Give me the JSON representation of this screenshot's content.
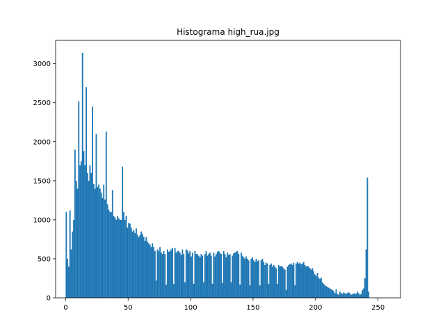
{
  "chart_data": {
    "type": "bar",
    "title": "Histograma high_rua.jpg",
    "xlabel": "",
    "ylabel": "",
    "xlim": [
      -8,
      268
    ],
    "ylim": [
      0,
      3300
    ],
    "xticks": [
      0,
      50,
      100,
      150,
      200,
      250
    ],
    "yticks": [
      0,
      500,
      1000,
      1500,
      2000,
      2500,
      3000
    ],
    "xtick_labels": [
      "0",
      "50",
      "100",
      "150",
      "200",
      "250"
    ],
    "ytick_labels": [
      "0",
      "500",
      "1000",
      "1500",
      "2000",
      "2500",
      "3000"
    ],
    "bar_color": "#1f77b4",
    "grid": false,
    "bin_start": 0,
    "bin_width": 1,
    "values": [
      1100,
      500,
      400,
      1120,
      620,
      850,
      1000,
      1900,
      1500,
      1400,
      2520,
      1700,
      1750,
      3140,
      1880,
      1700,
      2700,
      1600,
      1500,
      1700,
      1600,
      2450,
      1460,
      1400,
      2100,
      1420,
      1450,
      1400,
      1350,
      1280,
      1450,
      1260,
      2130,
      1200,
      1130,
      1100,
      1100,
      1380,
      1050,
      1030,
      1000,
      1050,
      1020,
      1000,
      1000,
      1680,
      1100,
      1000,
      1050,
      900,
      960,
      950,
      900,
      850,
      870,
      830,
      890,
      810,
      780,
      800,
      850,
      820,
      780,
      730,
      780,
      720,
      700,
      680,
      650,
      700,
      650,
      600,
      220,
      620,
      600,
      650,
      580,
      560,
      600,
      560,
      170,
      620,
      590,
      600,
      620,
      640,
      180,
      640,
      580,
      600,
      600,
      580,
      550,
      620,
      560,
      200,
      620,
      610,
      570,
      600,
      530,
      580,
      180,
      600,
      560,
      560,
      540,
      520,
      560,
      540,
      200,
      560,
      600,
      540,
      560,
      580,
      540,
      180,
      580,
      530,
      560,
      590,
      600,
      580,
      560,
      190,
      600,
      560,
      520,
      580,
      550,
      560,
      200,
      540,
      570,
      580,
      590,
      600,
      560,
      170,
      580,
      540,
      520,
      500,
      530,
      500,
      480,
      160,
      500,
      520,
      480,
      460,
      500,
      470,
      480,
      160,
      480,
      500,
      460,
      420,
      450,
      440,
      180,
      420,
      440,
      400,
      420,
      400,
      380,
      180,
      420,
      400,
      410,
      400,
      380,
      360,
      100,
      400,
      420,
      430,
      440,
      420,
      450,
      160,
      440,
      460,
      440,
      450,
      430,
      440,
      460,
      420,
      400,
      410,
      400,
      380,
      360,
      380,
      340,
      300,
      280,
      320,
      260,
      240,
      260,
      200,
      180,
      160,
      150,
      140,
      130,
      120,
      110,
      100,
      90,
      60,
      110,
      50,
      40,
      80,
      60,
      50,
      70,
      60,
      50,
      60,
      70,
      60,
      40,
      50,
      50,
      60,
      50,
      80,
      60,
      40,
      50,
      100,
      120,
      250,
      620,
      1540,
      80
    ]
  }
}
